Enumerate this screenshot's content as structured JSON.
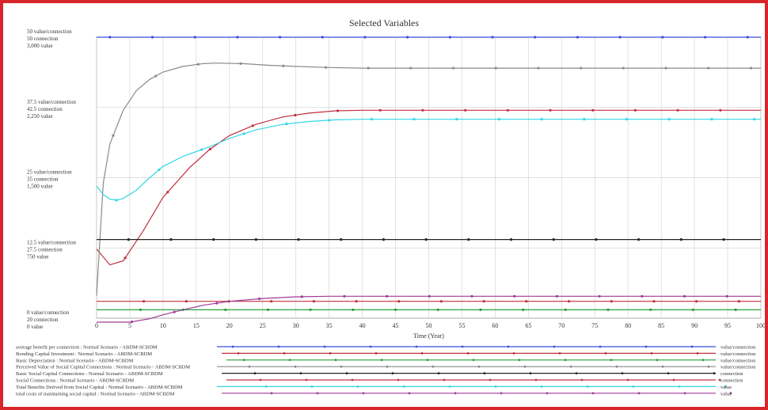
{
  "chart_data": {
    "type": "line",
    "title": "Selected Variables",
    "xlabel": "Time (Year)",
    "x_ticks": [
      0,
      5,
      10,
      15,
      20,
      25,
      30,
      35,
      40,
      45,
      50,
      55,
      60,
      65,
      70,
      75,
      80,
      85,
      90,
      95,
      100
    ],
    "xlim": [
      0,
      100
    ],
    "y_axis_rows": [
      {
        "lines": [
          "50  value/connection",
          "50  connection",
          "3,000  value"
        ]
      },
      {
        "lines": [
          "37.5  value/connection",
          "42.5  connection",
          "2,250  value"
        ]
      },
      {
        "lines": [
          "25  value/connection",
          "35  connection",
          "1,500  value"
        ]
      },
      {
        "lines": [
          "12.5  value/connection",
          "27.5  connection",
          "750  value"
        ]
      },
      {
        "lines": [
          "0  value/connection",
          "20  connection",
          "0  value"
        ]
      }
    ],
    "grid": true,
    "series": [
      {
        "name": "average benefit per connection : Normal Scenario - ABDM-SCBDM",
        "unit": "value/connection",
        "color": "#3b4fd6",
        "x": [
          0,
          100
        ],
        "y": [
          50,
          50
        ]
      },
      {
        "name": "Bonding Capital Investment : Normal Scenario - ABDM-SCBDM",
        "unit": "value/connection",
        "color": "#c03040",
        "x": [
          0,
          2,
          4,
          7,
          10,
          14,
          17,
          20,
          24,
          28,
          32,
          36,
          40,
          50,
          60,
          70,
          80,
          90,
          100
        ],
        "y": [
          12.3,
          9.5,
          10.2,
          15.5,
          21.5,
          26.8,
          30.0,
          32.5,
          34.5,
          35.8,
          36.5,
          36.9,
          37.0,
          37.0,
          37.0,
          37.0,
          37.0,
          37.0,
          37.0
        ]
      },
      {
        "name": "Basic Depreciation : Normal Scenario - ABDM-SCBDM",
        "unit": "value/connection",
        "color": "#2e9e3a",
        "x": [
          0,
          100
        ],
        "y": [
          1.5,
          1.5
        ]
      },
      {
        "name": "Perceived Value of Social Capital Connections : Normal Scenario - ABDM-SCBDM",
        "unit": "value/connection",
        "color": "#8a8a8a",
        "x": [
          0,
          1,
          2,
          4,
          6,
          8,
          10,
          13,
          16,
          18,
          22,
          26,
          30,
          35,
          40,
          50,
          60,
          70,
          80,
          90,
          100
        ],
        "y": [
          4,
          24,
          31,
          37,
          40.5,
          42.5,
          43.8,
          44.8,
          45.3,
          45.4,
          45.3,
          45.0,
          44.8,
          44.6,
          44.5,
          44.5,
          44.5,
          44.5,
          44.5,
          44.5,
          44.5
        ]
      },
      {
        "name": "Basic Social Capital Connections : Normal Scenario - ABDM-SCBDM",
        "unit": "connection",
        "color": "#222222",
        "x": [
          0,
          100
        ],
        "y": [
          14,
          14
        ]
      },
      {
        "name": "Social Connections : Normal Scenario - ABDM-SCBDM",
        "unit": "connection",
        "color": "#c03040",
        "x": [
          0,
          100
        ],
        "y": [
          3.0,
          3.0
        ]
      },
      {
        "name": "Total Benefits Derived from Social Capital : Normal Scenario - ABDM-SCBDM",
        "unit": "value",
        "color": "#33d6e6",
        "x": [
          0,
          1,
          2,
          3,
          4,
          6,
          8,
          10,
          13,
          17,
          20,
          24,
          28,
          32,
          36,
          40,
          50,
          60,
          70,
          80,
          90,
          100
        ],
        "y": [
          23.5,
          22,
          21.2,
          21.0,
          21.3,
          22.8,
          25.0,
          27.0,
          28.8,
          30.5,
          32.0,
          33.5,
          34.5,
          35.0,
          35.3,
          35.4,
          35.4,
          35.4,
          35.4,
          35.4,
          35.4,
          35.4
        ]
      },
      {
        "name": "total costs of maintaining social capital : Normal Scenario - ABDM-SCBDM",
        "unit": "value",
        "color": "#a03a9a",
        "x": [
          0,
          5,
          8,
          10,
          13,
          16,
          20,
          25,
          30,
          35,
          40,
          50,
          60,
          70,
          80,
          90,
          100
        ],
        "y": [
          -0.7,
          -0.7,
          -0.1,
          0.6,
          1.5,
          2.3,
          3.0,
          3.5,
          3.8,
          3.9,
          3.9,
          3.9,
          3.9,
          3.9,
          3.9,
          3.9,
          3.9
        ]
      }
    ]
  }
}
